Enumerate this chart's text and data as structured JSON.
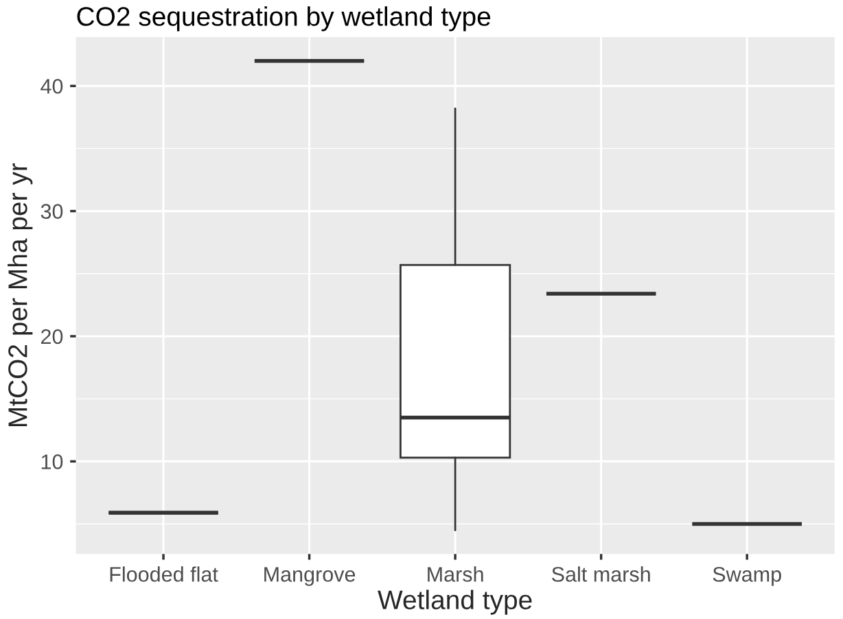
{
  "chart_data": {
    "type": "box",
    "title": "CO2 sequestration by wetland type",
    "xlabel": "Wetland type",
    "ylabel": "MtCO2 per Mha per yr",
    "categories": [
      "Flooded flat",
      "Mangrove",
      "Marsh",
      "Salt marsh",
      "Swamp"
    ],
    "boxes": [
      {
        "low": 5.9,
        "q1": 5.9,
        "median": 5.9,
        "q3": 5.9,
        "high": 5.9
      },
      {
        "low": 42.0,
        "q1": 42.0,
        "median": 42.0,
        "q3": 42.0,
        "high": 42.0
      },
      {
        "low": 4.5,
        "q1": 10.3,
        "median": 13.5,
        "q3": 25.7,
        "high": 38.2
      },
      {
        "low": 23.4,
        "q1": 23.4,
        "median": 23.4,
        "q3": 23.4,
        "high": 23.4
      },
      {
        "low": 5.0,
        "q1": 5.0,
        "median": 5.0,
        "q3": 5.0,
        "high": 5.0
      }
    ],
    "ylim": [
      2.6,
      43.9
    ],
    "yticks": [
      10,
      20,
      30,
      40
    ],
    "grid": true
  }
}
